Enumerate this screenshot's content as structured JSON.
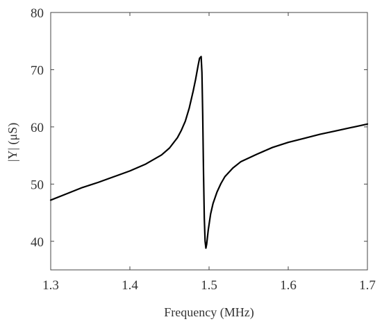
{
  "chart_data": {
    "type": "line",
    "title": "",
    "xlabel": "Frequency (MHz)",
    "ylabel": "|Y| (μS)",
    "xlim": [
      1.3,
      1.7
    ],
    "ylim": [
      35,
      80
    ],
    "x_ticks": [
      "1.3",
      "1.4",
      "1.5",
      "1.6",
      "1.7"
    ],
    "y_ticks": [
      "40",
      "50",
      "60",
      "70",
      "80"
    ],
    "grid": false,
    "legend": "none",
    "line_color": "#000000",
    "series": [
      {
        "x": [
          1.3,
          1.32,
          1.34,
          1.36,
          1.38,
          1.4,
          1.42,
          1.44,
          1.45,
          1.46,
          1.465,
          1.47,
          1.475,
          1.48,
          1.483,
          1.486,
          1.488,
          1.49,
          1.491,
          1.492,
          1.493,
          1.494,
          1.495,
          1.496,
          1.497,
          1.499,
          1.502,
          1.505,
          1.51,
          1.515,
          1.52,
          1.53,
          1.54,
          1.56,
          1.58,
          1.6,
          1.62,
          1.64,
          1.66,
          1.68,
          1.7
        ],
        "y": [
          47.2,
          48.3,
          49.4,
          50.3,
          51.3,
          52.3,
          53.5,
          55.1,
          56.3,
          58.1,
          59.4,
          61.0,
          63.3,
          66.3,
          68.3,
          70.6,
          72.0,
          72.3,
          69.5,
          62.0,
          52.0,
          44.0,
          40.0,
          38.8,
          39.5,
          42.0,
          44.8,
          46.6,
          48.6,
          50.1,
          51.3,
          52.8,
          53.9,
          55.2,
          56.4,
          57.3,
          58.0,
          58.7,
          59.3,
          59.9,
          60.5
        ]
      }
    ]
  }
}
